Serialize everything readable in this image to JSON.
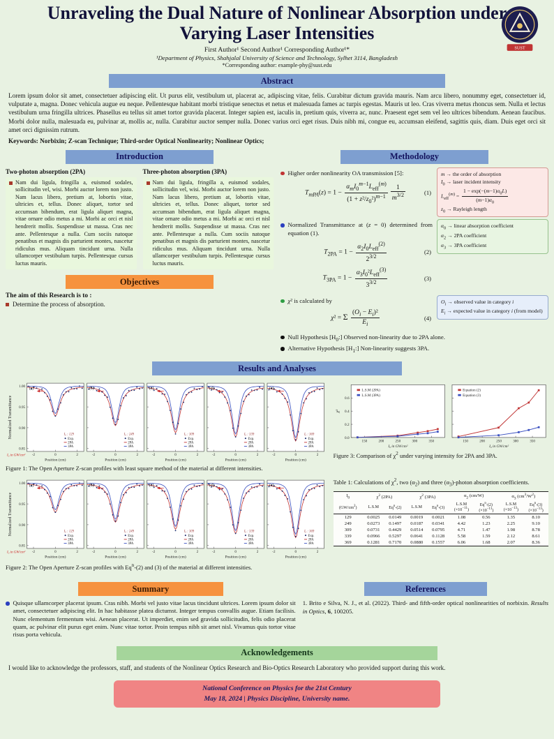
{
  "header": {
    "title": "Unraveling the Dual Nature of Nonlinear Absorption under Varying Laser Intensities",
    "authors": "First Author¹   Second Author¹   Corresponding Author¹*",
    "affiliation": "¹Department of Physics, Shahjalal University of Science and Technology, Sylhet 3114, Bangladesh",
    "corresponding": "*Corresponding author: example-phy@sust.edu",
    "logo_label": "SUST"
  },
  "abstract": {
    "heading": "Abstract",
    "text": "Lorem ipsum dolor sit amet, consectetuer adipiscing elit. Ut purus elit, vestibulum ut, placerat ac, adipiscing vitae, felis. Curabitur dictum gravida mauris. Nam arcu libero, nonummy eget, consectetuer id, vulputate a, magna. Donec vehicula augue eu neque. Pellentesque habitant morbi tristique senectus et netus et malesuada fames ac turpis egestas. Mauris ut leo. Cras viverra metus rhoncus sem. Nulla et lectus vestibulum urna fringilla ultrices. Phasellus eu tellus sit amet tortor gravida placerat. Integer sapien est, iaculis in, pretium quis, viverra ac, nunc. Praesent eget sem vel leo ultrices bibendum. Aenean faucibus. Morbi dolor nulla, malesuada eu, pulvinar at, mollis ac, nulla. Curabitur auctor semper nulla. Donec varius orci eget risus. Duis nibh mi, congue eu, accumsan eleifend, sagittis quis, diam. Duis eget orci sit amet orci dignissim rutrum.",
    "keywords": "Keywords: Norbixin; Z-scan Technique; Third-order Optical Nonlinearity; Nonlinear Optics;"
  },
  "introduction": {
    "heading": "Introduction",
    "col1_title": "Two-photon absorption (2PA)",
    "col2_title": "Three-photon absorption (3PA)",
    "col1_text": "Nam dui ligula, fringilla a, euismod sodales, sollicitudin vel, wisi. Morbi auctor lorem non justo. Nam lacus libero, pretium at, lobortis vitae, ultricies et, tellus. Donec aliquet, tortor sed accumsan bibendum, erat ligula aliquet magna, vitae ornare odio metus a mi. Morbi ac orci et nisl hendrerit mollis. Suspendisse ut massa. Cras nec ante. Pellentesque a nulla. Cum sociis natoque penatibus et magnis dis parturient montes, nascetur ridiculus mus. Aliquam tincidunt urna. Nulla ullamcorper vestibulum turpis. Pellentesque cursus luctus mauris.",
    "col2_text": "Nam dui ligula, fringilla a, euismod sodales, sollicitudin vel, wisi. Morbi auctor lorem non justo. Nam lacus libero, pretium at, lobortis vitae, ultricies et, tellus. Donec aliquet, tortor sed accumsan bibendum, erat ligula aliquet magna, vitae ornare odio metus a mi. Morbi ac orci et nisl hendrerit mollis. Suspendisse ut massa. Cras nec ante. Pellentesque a nulla. Cum sociis natoque penatibus et magnis dis parturient montes, nascetur ridiculus mus. Aliquam tincidunt urna. Nulla ullamcorper vestibulum turpis. Pellentesque cursus luctus mauris."
  },
  "objectives": {
    "heading": "Objectives",
    "lead": "The aim of this Research is to :",
    "items": [
      "Determine the process of absorption."
    ]
  },
  "methodology": {
    "heading": "Methodology",
    "b1": "Higher order nonlinearity OA transmission [5]:",
    "eq1": "<i>T</i><sub><i>mPA</i></sub>(<i>z</i>) = 1 − <span class='frac'><span class='nu'><i>α<sub>m</sub></i><i>I</i><sub>0</sub><sup><i>m</i>−1</sup><i>L</i><sub>eff</sub><sup>(<i>m</i>)</sup></span><span class='de'>(1 + <i>z</i>²/<i>z</i><sub>0</sub>²)<sup><i>m</i>−1</sup></span></span><span class='frac'><span class='nu'>1</span><span class='de'><i>m</i><sup>3/2</sup></span></span>",
    "eq1_num": "(1)",
    "box_m": [
      "<i>m</i> → the order of absorption",
      "<i>I</i><sub>0</sub> → laser incident intensity",
      "<i>L</i><sub>eff</sub><sup>(<i>m</i>)</sup> = <span class='frac'><span class='nu'>1 − exp(−(<i>m</i>−1)<i>α</i><sub>0</sub><i>L</i>)</span><span class='de'>(<i>m</i>−1)<i>α</i><sub>0</sub></span></span>",
      "<i>z</i><sub>0</sub> → Rayleigh length"
    ],
    "b2": "Normalized Transmittance at (<i>z</i> = 0) determined from equation (1).",
    "eq2": "<i>T</i><sub>2PA</sub> = 1 − <span class='frac'><span class='nu'><i>α</i><sub>2</sub><i>I</i><sub>0</sub><i>L</i><sub>eff</sub><sup>(2)</sup></span><span class='de'>2<sup>3/2</sup></span></span>",
    "eq2_num": "(2)",
    "eq3": "<i>T</i><sub>3PA</sub> = 1 − <span class='frac'><span class='nu'><i>α</i><sub>3</sub><i>I</i><sub>0</sub>²<i>L</i><sub>eff</sub><sup>(3)</sup></span><span class='de'>3<sup>3/2</sup></span></span>",
    "eq3_num": "(3)",
    "box_alpha": [
      "<i>α</i><sub>0</sub> → linear absorption coefficient",
      "<i>α</i><sub>2</sub> → 2PA coefficient",
      "<i>α</i><sub>3</sub> → 3PA coefficient"
    ],
    "b3": "<i>χ</i>² is calculated by",
    "eq4": "<i>χ</i>² = <span class='sum'>Σ</span> <span class='frac'><span class='nu'>(<i>O<sub>i</sub></i> − <i>E<sub>i</sub></i>)²</span><span class='de'><i>E<sub>i</sub></i></span></span>",
    "eq4_num": "(4)",
    "box_oe": [
      "<i>O<sub>i</sub></i> → observed value in category <i>i</i>",
      "<i>E<sub>i</sub></i> → expected value in category <i>i</i> (from model)"
    ],
    "b4": "Null Hypothesis [H<sub>0</sub>:] Observed non-linearity due to 2PA alone.",
    "b5": "Alternative Hypothesis [H<sub>1</sub>:] Non-linearity suggests 3PA."
  },
  "results": {
    "heading": "Results and Analyses",
    "fig1_caption": "Figure 1: The Open Aperture Z-scan profiles with least square method of the material at different intensities.",
    "fig2_caption": "Figure 2: The Open Aperture Z-scan profiles with Eq<sup>n</sup>-(2) and (3) of the material at different intensities.",
    "fig3_caption": "Figure 3: Comparison of χ<sup>2</sup> under varying intensity for 2PA and 3PA.",
    "table1": {
      "caption": "Table 1: Calculations of χ<sup>2</sup>, two (α<sub>2</sub>) and three (α<sub>3</sub>)-photon absorption coefficients.",
      "groups": [
        {
          "label": "I<sub>0</sub>",
          "span": 1
        },
        {
          "label": "χ<sup>2</sup> (2PA)",
          "span": 2
        },
        {
          "label": "χ<sup>2</sup> (3PA)",
          "span": 2
        },
        {
          "label": "α<sub>2</sub> (cm/W)",
          "span": 2
        },
        {
          "label": "α<sub>3</sub> (cm<sup>3</sup>/W<sup>2</sup>)",
          "span": 2
        }
      ],
      "sub": [
        "(GW/cm<sup>2</sup>)",
        "L.S.M",
        "Eq<sup>n</sup>-(2)",
        "L.S.M",
        "Eq<sup>n</sup>-(3)",
        "L.S.M<br>(×10<sup>−11</sup>)",
        "Eq<sup>n</sup>-(2)<br>(×10<sup>−11</sup>)",
        "L.S.M<br>(×10<sup>−13</sup>)",
        "Eq<sup>n</sup>-(3)<br>(×10<sup>−13</sup>)"
      ],
      "rows": [
        [
          "129",
          "0.0025",
          "0.0149",
          "0.0019",
          "0.0021",
          "1.08",
          "0.56",
          "1.35",
          "8.10"
        ],
        [
          "249",
          "0.0273",
          "0.1497",
          "0.0187",
          "0.0341",
          "4.42",
          "1.23",
          "2.25",
          "9.10"
        ],
        [
          "309",
          "0.0731",
          "0.4429",
          "0.0514",
          "0.0795",
          "4.71",
          "1.47",
          "1.98",
          "8.78"
        ],
        [
          "339",
          "0.0966",
          "0.5297",
          "0.0641",
          "0.1128",
          "5.58",
          "1.59",
          "2.12",
          "8.61"
        ],
        [
          "369",
          "0.1281",
          "0.7170",
          "0.0880",
          "0.1557",
          "6.06",
          "1.68",
          "2.07",
          "8.36"
        ]
      ]
    }
  },
  "summary": {
    "heading": "Summary",
    "text": "Quisque ullamcorper placerat ipsum. Cras nibh. Morbi vel justo vitae lacus tincidunt ultrices. Lorem ipsum dolor sit amet, consectetuer adipiscing elit. In hac habitasse platea dictumst. Integer tempus convallis augue. Etiam facilisis. Nunc elementum fermentum wisi. Aenean placerat. Ut imperdiet, enim sed gravida sollicitudin, felis odio placerat quam, ac pulvinar elit purus eget enim. Nunc vitae tortor. Proin tempus nibh sit amet nisl. Vivamus quis tortor vitae risus porta vehicula."
  },
  "references": {
    "heading": "References",
    "items": [
      "1. Brito e Silva, N. J., et al. (2022). Third- and fifth-order optical nonlinearities of norbixin. <i>Results in Optics</i>, <b>6</b>, 100205."
    ]
  },
  "acknowledgements": {
    "heading": "Acknowledgements",
    "text": "I would like to acknowledge the professors, staff, and students of the Nonlinear Optics Research and Bio-Optics Research Laboratory who provided support during this work."
  },
  "footer": {
    "line1": "National Conference on Physics for the 21st Century",
    "line2": "May 18, 2024  |  Physics Discipline, University name."
  },
  "chart_data": [
    {
      "id": "fig1",
      "type": "line",
      "title": "Open Aperture Z-scan profiles (least square method)",
      "panels": [
        "a",
        "b",
        "c",
        "d",
        "e"
      ],
      "intensities": [
        129,
        249,
        309,
        339,
        369
      ],
      "dip2": [
        0.928,
        0.905,
        0.888,
        0.878,
        0.868
      ],
      "dip3": [
        0.934,
        0.912,
        0.895,
        0.885,
        0.876
      ],
      "xlabel": "Position (cm)",
      "ylabel": "Normalized Transmittance",
      "xticks": [
        -2,
        0,
        2
      ],
      "yticks": [
        1.0,
        0.95,
        0.9,
        0.85
      ],
      "ymin": 0.843,
      "ymax": 1.007,
      "xlim": [
        -2.6,
        2.6
      ],
      "legend": [
        "Exp.",
        "2PA",
        "3PA"
      ],
      "intensity_unit_note": "I₀ in GW/cm²",
      "colors": {
        "exp": "#1b2a6b",
        "pa2": "#c03434",
        "pa3": "#3a50c0"
      }
    },
    {
      "id": "fig2",
      "type": "line",
      "title": "Open Aperture Z-scan profiles with Eqn-(2) and (3)",
      "panels": [
        "a",
        "b",
        "c",
        "d",
        "e"
      ],
      "intensities": [
        129,
        249,
        309,
        339,
        369
      ],
      "dip2": [
        0.93,
        0.906,
        0.889,
        0.879,
        0.869
      ],
      "dip3": [
        0.936,
        0.913,
        0.896,
        0.886,
        0.877
      ],
      "xlabel": "Position (cm)",
      "ylabel": "Normalized Transmittance",
      "xticks": [
        -2,
        0,
        2
      ],
      "yticks": [
        1.0,
        0.95,
        0.9,
        0.85
      ],
      "ymin": 0.843,
      "ymax": 1.007,
      "xlim": [
        -2.6,
        2.6
      ],
      "legend": [
        "Exp.",
        "2PA",
        "3PA"
      ],
      "intensity_unit_note": "I₀ in GW/cm²",
      "colors": {
        "exp": "#1b2a6b",
        "pa2": "#c03434",
        "pa3": "#3a50c0"
      }
    },
    {
      "id": "fig3",
      "type": "line",
      "title": "Comparison of chi-squared under varying intensity",
      "x": [
        129,
        249,
        309,
        339,
        369
      ],
      "xticks": [
        150,
        200,
        250,
        300,
        350
      ],
      "yticks": [
        0.0,
        0.2,
        0.4,
        0.6
      ],
      "ylim": [
        0,
        0.8
      ],
      "ylabel": "χ²",
      "xlabel_svg": "I₀ in GW/cm²",
      "panels": [
        {
          "series": [
            {
              "name": "L.S.M (2PA)",
              "color": "#c03434",
              "values": [
                0.0025,
                0.0273,
                0.0731,
                0.0966,
                0.1281
              ]
            },
            {
              "name": "L.S.M (3PA)",
              "color": "#3a50c0",
              "values": [
                0.0019,
                0.0187,
                0.0514,
                0.0641,
                0.088
              ]
            }
          ]
        },
        {
          "series": [
            {
              "name": "Equation (2)",
              "color": "#c03434",
              "values": [
                0.0149,
                0.1497,
                0.4429,
                0.5297,
                0.717
              ]
            },
            {
              "name": "Equation (3)",
              "color": "#3a50c0",
              "values": [
                0.0021,
                0.0341,
                0.0795,
                0.1128,
                0.1557
              ]
            }
          ]
        }
      ]
    }
  ]
}
